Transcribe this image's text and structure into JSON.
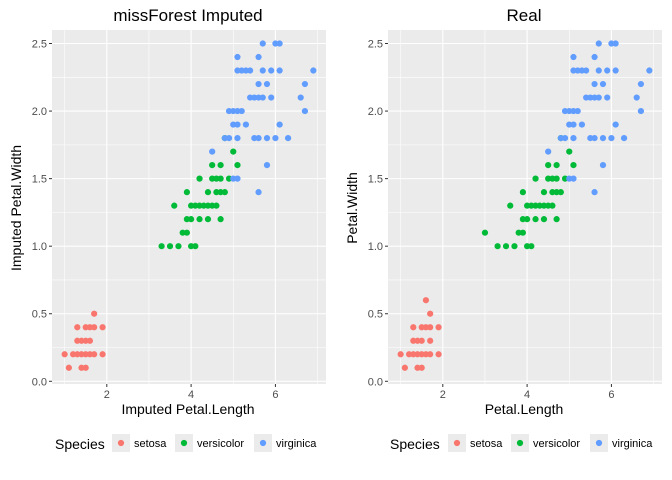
{
  "colors": {
    "setosa": "#F8766D",
    "versicolor": "#00BA38",
    "virginica": "#619CFF",
    "panel_bg": "#EBEBEB",
    "grid": "#FFFFFF"
  },
  "legend": {
    "title": "Species",
    "entries": [
      "setosa",
      "versicolor",
      "virginica"
    ],
    "placement": "bottom"
  },
  "chart_data": [
    {
      "type": "scatter",
      "title": "missForest Imputed",
      "xlabel": "Imputed Petal.Length",
      "ylabel": "Imputed Petal.Width",
      "xlim": [
        0.7,
        7.2
      ],
      "ylim": [
        -0.02,
        2.6
      ],
      "x_ticks": [
        2,
        4,
        6
      ],
      "y_ticks": [
        0.0,
        0.5,
        1.0,
        1.5,
        2.0,
        2.5
      ],
      "x_tick_labels": [
        "2",
        "4",
        "6"
      ],
      "y_tick_labels": [
        "0.0",
        "0.5",
        "1.0",
        "1.5",
        "2.0",
        "2.5"
      ],
      "grid": true,
      "series": [
        {
          "name": "setosa",
          "points": [
            [
              1.0,
              0.2
            ],
            [
              1.1,
              0.1
            ],
            [
              1.2,
              0.2
            ],
            [
              1.3,
              0.2
            ],
            [
              1.3,
              0.3
            ],
            [
              1.3,
              0.4
            ],
            [
              1.4,
              0.1
            ],
            [
              1.4,
              0.2
            ],
            [
              1.4,
              0.3
            ],
            [
              1.5,
              0.1
            ],
            [
              1.5,
              0.2
            ],
            [
              1.5,
              0.3
            ],
            [
              1.5,
              0.4
            ],
            [
              1.6,
              0.2
            ],
            [
              1.6,
              0.3
            ],
            [
              1.6,
              0.4
            ],
            [
              1.7,
              0.2
            ],
            [
              1.7,
              0.4
            ],
            [
              1.7,
              0.5
            ],
            [
              1.9,
              0.2
            ],
            [
              1.9,
              0.4
            ]
          ]
        },
        {
          "name": "versicolor",
          "points": [
            [
              3.3,
              1.0
            ],
            [
              3.5,
              1.0
            ],
            [
              3.6,
              1.3
            ],
            [
              3.7,
              1.0
            ],
            [
              3.8,
              1.1
            ],
            [
              3.9,
              1.1
            ],
            [
              3.9,
              1.2
            ],
            [
              3.9,
              1.4
            ],
            [
              4.0,
              1.0
            ],
            [
              4.0,
              1.2
            ],
            [
              4.0,
              1.3
            ],
            [
              4.1,
              1.0
            ],
            [
              4.1,
              1.3
            ],
            [
              4.2,
              1.2
            ],
            [
              4.2,
              1.3
            ],
            [
              4.2,
              1.5
            ],
            [
              4.3,
              1.3
            ],
            [
              4.4,
              1.2
            ],
            [
              4.4,
              1.3
            ],
            [
              4.4,
              1.4
            ],
            [
              4.5,
              1.3
            ],
            [
              4.5,
              1.5
            ],
            [
              4.5,
              1.6
            ],
            [
              4.6,
              1.3
            ],
            [
              4.6,
              1.4
            ],
            [
              4.6,
              1.5
            ],
            [
              4.7,
              1.2
            ],
            [
              4.7,
              1.4
            ],
            [
              4.7,
              1.5
            ],
            [
              4.7,
              1.6
            ],
            [
              4.8,
              1.4
            ],
            [
              4.8,
              1.8
            ],
            [
              4.9,
              1.5
            ],
            [
              5.0,
              1.7
            ],
            [
              5.1,
              1.6
            ]
          ]
        },
        {
          "name": "virginica",
          "points": [
            [
              4.5,
              1.7
            ],
            [
              4.8,
              1.8
            ],
            [
              4.9,
              1.8
            ],
            [
              4.9,
              2.0
            ],
            [
              5.0,
              1.5
            ],
            [
              5.0,
              1.9
            ],
            [
              5.0,
              2.0
            ],
            [
              5.1,
              1.5
            ],
            [
              5.1,
              1.8
            ],
            [
              5.1,
              1.9
            ],
            [
              5.1,
              2.0
            ],
            [
              5.1,
              2.3
            ],
            [
              5.1,
              2.4
            ],
            [
              5.2,
              2.0
            ],
            [
              5.2,
              2.3
            ],
            [
              5.3,
              1.9
            ],
            [
              5.3,
              2.3
            ],
            [
              5.4,
              2.1
            ],
            [
              5.4,
              2.3
            ],
            [
              5.5,
              1.8
            ],
            [
              5.5,
              2.1
            ],
            [
              5.6,
              1.4
            ],
            [
              5.6,
              1.8
            ],
            [
              5.6,
              2.1
            ],
            [
              5.6,
              2.2
            ],
            [
              5.6,
              2.4
            ],
            [
              5.7,
              2.1
            ],
            [
              5.7,
              2.3
            ],
            [
              5.7,
              2.5
            ],
            [
              5.8,
              1.6
            ],
            [
              5.8,
              1.8
            ],
            [
              5.8,
              2.2
            ],
            [
              5.9,
              2.1
            ],
            [
              5.9,
              2.3
            ],
            [
              6.0,
              1.8
            ],
            [
              6.0,
              2.5
            ],
            [
              6.1,
              1.9
            ],
            [
              6.1,
              2.3
            ],
            [
              6.1,
              2.5
            ],
            [
              6.3,
              1.8
            ],
            [
              6.6,
              2.1
            ],
            [
              6.7,
              2.0
            ],
            [
              6.7,
              2.2
            ],
            [
              6.9,
              2.3
            ]
          ]
        }
      ]
    },
    {
      "type": "scatter",
      "title": "Real",
      "xlabel": "Petal.Length",
      "ylabel": "Petal.Width",
      "xlim": [
        0.7,
        7.2
      ],
      "ylim": [
        -0.02,
        2.6
      ],
      "x_ticks": [
        2,
        4,
        6
      ],
      "y_ticks": [
        0.0,
        0.5,
        1.0,
        1.5,
        2.0,
        2.5
      ],
      "x_tick_labels": [
        "2",
        "4",
        "6"
      ],
      "y_tick_labels": [
        "0.0",
        "0.5",
        "1.0",
        "1.5",
        "2.0",
        "2.5"
      ],
      "grid": true,
      "series": [
        {
          "name": "setosa",
          "points": [
            [
              1.0,
              0.2
            ],
            [
              1.1,
              0.1
            ],
            [
              1.2,
              0.2
            ],
            [
              1.3,
              0.2
            ],
            [
              1.3,
              0.3
            ],
            [
              1.3,
              0.4
            ],
            [
              1.4,
              0.1
            ],
            [
              1.4,
              0.2
            ],
            [
              1.4,
              0.3
            ],
            [
              1.5,
              0.1
            ],
            [
              1.5,
              0.2
            ],
            [
              1.5,
              0.3
            ],
            [
              1.5,
              0.4
            ],
            [
              1.6,
              0.2
            ],
            [
              1.6,
              0.4
            ],
            [
              1.6,
              0.6
            ],
            [
              1.7,
              0.2
            ],
            [
              1.7,
              0.3
            ],
            [
              1.7,
              0.4
            ],
            [
              1.7,
              0.5
            ],
            [
              1.9,
              0.2
            ],
            [
              1.9,
              0.4
            ]
          ]
        },
        {
          "name": "versicolor",
          "points": [
            [
              3.0,
              1.1
            ],
            [
              3.3,
              1.0
            ],
            [
              3.5,
              1.0
            ],
            [
              3.6,
              1.3
            ],
            [
              3.7,
              1.0
            ],
            [
              3.8,
              1.1
            ],
            [
              3.9,
              1.1
            ],
            [
              3.9,
              1.2
            ],
            [
              3.9,
              1.4
            ],
            [
              4.0,
              1.0
            ],
            [
              4.0,
              1.2
            ],
            [
              4.0,
              1.3
            ],
            [
              4.1,
              1.0
            ],
            [
              4.1,
              1.3
            ],
            [
              4.2,
              1.2
            ],
            [
              4.2,
              1.3
            ],
            [
              4.2,
              1.5
            ],
            [
              4.3,
              1.3
            ],
            [
              4.4,
              1.2
            ],
            [
              4.4,
              1.3
            ],
            [
              4.4,
              1.4
            ],
            [
              4.5,
              1.3
            ],
            [
              4.5,
              1.5
            ],
            [
              4.5,
              1.6
            ],
            [
              4.6,
              1.3
            ],
            [
              4.6,
              1.4
            ],
            [
              4.6,
              1.5
            ],
            [
              4.7,
              1.2
            ],
            [
              4.7,
              1.4
            ],
            [
              4.7,
              1.5
            ],
            [
              4.7,
              1.6
            ],
            [
              4.8,
              1.4
            ],
            [
              4.8,
              1.8
            ],
            [
              4.9,
              1.5
            ],
            [
              5.0,
              1.7
            ],
            [
              5.1,
              1.6
            ]
          ]
        },
        {
          "name": "virginica",
          "points": [
            [
              4.5,
              1.7
            ],
            [
              4.8,
              1.8
            ],
            [
              4.9,
              1.8
            ],
            [
              4.9,
              2.0
            ],
            [
              5.0,
              1.5
            ],
            [
              5.0,
              1.9
            ],
            [
              5.0,
              2.0
            ],
            [
              5.1,
              1.5
            ],
            [
              5.1,
              1.8
            ],
            [
              5.1,
              1.9
            ],
            [
              5.1,
              2.0
            ],
            [
              5.1,
              2.3
            ],
            [
              5.1,
              2.4
            ],
            [
              5.2,
              2.0
            ],
            [
              5.2,
              2.3
            ],
            [
              5.3,
              1.9
            ],
            [
              5.3,
              2.3
            ],
            [
              5.4,
              2.1
            ],
            [
              5.4,
              2.3
            ],
            [
              5.5,
              1.8
            ],
            [
              5.5,
              2.1
            ],
            [
              5.6,
              1.4
            ],
            [
              5.6,
              1.8
            ],
            [
              5.6,
              2.1
            ],
            [
              5.6,
              2.2
            ],
            [
              5.6,
              2.4
            ],
            [
              5.7,
              2.1
            ],
            [
              5.7,
              2.3
            ],
            [
              5.7,
              2.5
            ],
            [
              5.8,
              1.6
            ],
            [
              5.8,
              1.8
            ],
            [
              5.8,
              2.2
            ],
            [
              5.9,
              2.1
            ],
            [
              5.9,
              2.3
            ],
            [
              6.0,
              1.8
            ],
            [
              6.0,
              2.5
            ],
            [
              6.1,
              1.9
            ],
            [
              6.1,
              2.3
            ],
            [
              6.1,
              2.5
            ],
            [
              6.3,
              1.8
            ],
            [
              6.6,
              2.1
            ],
            [
              6.7,
              2.0
            ],
            [
              6.7,
              2.2
            ],
            [
              6.9,
              2.3
            ]
          ]
        }
      ]
    }
  ]
}
